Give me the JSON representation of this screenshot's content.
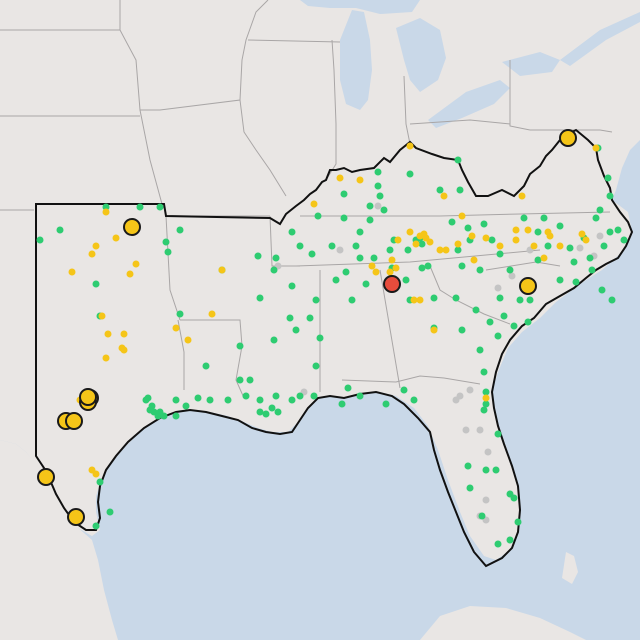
{
  "map": {
    "colors": {
      "land": "#e9e6e4",
      "land_shade": "#dcd8d4",
      "water": "#c9d8e8",
      "border": "#a9a6a6",
      "region_outline": "#111111",
      "marker_green": "#2ecc71",
      "marker_yellow": "#f5c518",
      "marker_gray": "#c4c4c4",
      "marker_red": "#e74c3c",
      "marker_stroke": "#1a1a1a"
    },
    "marker_types": [
      "small-green-dot",
      "small-yellow-dot",
      "small-gray-dot",
      "large-yellow-circle",
      "large-red-circle"
    ],
    "marker_counts": {
      "green": 160,
      "yellow": 62,
      "gray": 20,
      "large_yellow": 10,
      "large_red": 1
    }
  }
}
